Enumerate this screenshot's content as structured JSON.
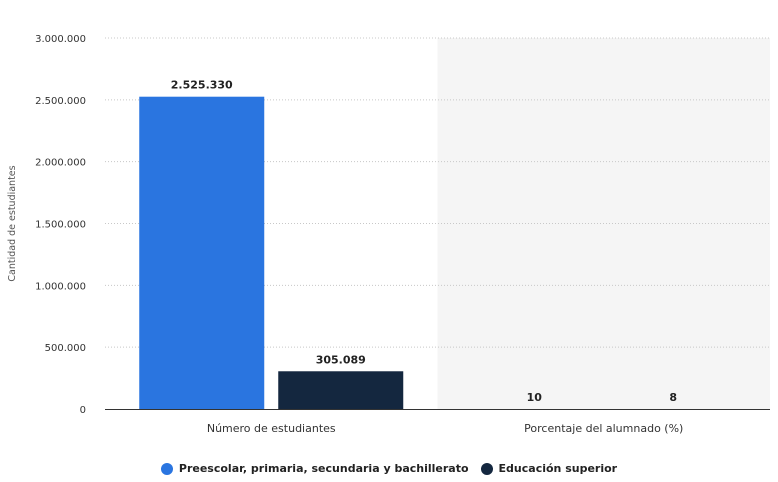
{
  "chart_data": {
    "type": "bar",
    "categories": [
      "Número de estudiantes",
      "Porcentaje del alumnado (%)"
    ],
    "series": [
      {
        "name": "Preescolar, primaria, secundaria y bachillerato",
        "color": "#2A75E0",
        "values": [
          2525330,
          10
        ],
        "labels": [
          "2.525.330",
          "10"
        ]
      },
      {
        "name": "Educación superior",
        "color": "#14273F",
        "values": [
          305089,
          8
        ],
        "labels": [
          "305.089",
          "8"
        ]
      }
    ],
    "ylabel": "Cantidad de estudiantes",
    "ylim": [
      0,
      3000000
    ],
    "yticks": [
      {
        "value": 0,
        "label": "0"
      },
      {
        "value": 500000,
        "label": "500.000"
      },
      {
        "value": 1000000,
        "label": "1.000.000"
      },
      {
        "value": 1500000,
        "label": "1.500.000"
      },
      {
        "value": 2000000,
        "label": "2.000.000"
      },
      {
        "value": 2500000,
        "label": "2.500.000"
      },
      {
        "value": 3000000,
        "label": "3.000.000"
      }
    ],
    "grid": true,
    "shaded_band": {
      "category": "Porcentaje del alumnado (%)",
      "color": "#F5F5F5"
    },
    "legend_position": "bottom"
  }
}
